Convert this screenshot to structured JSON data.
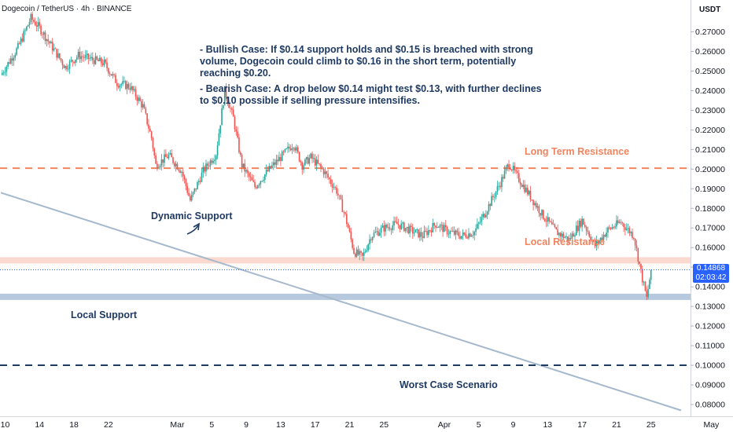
{
  "header": {
    "symbol": "Dogecoin / TetherUS · 4h · BINANCE",
    "currency": "USDT"
  },
  "price_badge": {
    "price": "0.14868",
    "countdown": "02:03:42"
  },
  "notes": {
    "bullish": "- Bullish Case: If $0.14 support holds and $0.15 is breached with strong volume, Dogecoin could climb to $0.16 in the short term, potentially reaching $0.20.",
    "bearish": "- Bearish Case: A drop below $0.14 might test $0.13, with further declines to $0.10 possible if selling pressure intensifies."
  },
  "labels": {
    "long_term_resistance": "Long Term Resistance",
    "local_resistance": "Local Resistance",
    "dynamic_support": "Dynamic Support",
    "local_support": "Local Support",
    "worst_case": "Worst Case Scenario"
  },
  "colors": {
    "up": "#26a69a",
    "down": "#ef5350",
    "resistance": "#f0845f",
    "support_zone": "#b7c9de",
    "support_line": "#1f3a63",
    "trendline": "#a6b9cc",
    "label_orange": "#f0845f",
    "label_navy": "#1f3a63",
    "price_badge": "#2962ff"
  },
  "chart_data": {
    "type": "candlestick",
    "pair": "DOGE/USDT",
    "timeframe": "4h",
    "ylim": [
      0.075,
      0.28
    ],
    "y_ticks": [
      "0.27000",
      "0.26000",
      "0.25000",
      "0.24000",
      "0.23000",
      "0.22000",
      "0.21000",
      "0.20000",
      "0.19000",
      "0.18000",
      "0.17000",
      "0.16000",
      "0.15000",
      "0.14000",
      "0.13000",
      "0.12000",
      "0.11000",
      "0.10000",
      "0.09000",
      "0.08000"
    ],
    "x_ticks": [
      "10",
      "14",
      "18",
      "22",
      "Mar",
      "5",
      "9",
      "13",
      "17",
      "21",
      "25",
      "Apr",
      "5",
      "9",
      "13",
      "17",
      "21",
      "25",
      "May"
    ],
    "x_tick_days": [
      -9.5,
      -5.5,
      -1.5,
      2.5,
      10.5,
      14.5,
      18.5,
      22.5,
      26.5,
      30.5,
      34.5,
      41.5,
      45.5,
      49.5,
      53.5,
      57.5,
      61.5,
      65.5,
      72.5
    ],
    "price_path": [
      [
        -10,
        0.248
      ],
      [
        -8,
        0.262
      ],
      [
        -6.5,
        0.277
      ],
      [
        -5.5,
        0.272
      ],
      [
        -4,
        0.262
      ],
      [
        -2.5,
        0.252
      ],
      [
        -1,
        0.258
      ],
      [
        2,
        0.254
      ],
      [
        3.5,
        0.244
      ],
      [
        5,
        0.242
      ],
      [
        6.5,
        0.232
      ],
      [
        7.5,
        0.216
      ],
      [
        8,
        0.202
      ],
      [
        9.5,
        0.207
      ],
      [
        11,
        0.199
      ],
      [
        12,
        0.184
      ],
      [
        13.5,
        0.199
      ],
      [
        15,
        0.208
      ],
      [
        16,
        0.24
      ],
      [
        17,
        0.226
      ],
      [
        18,
        0.202
      ],
      [
        19.5,
        0.191
      ],
      [
        21,
        0.199
      ],
      [
        22.5,
        0.206
      ],
      [
        24,
        0.213
      ],
      [
        25,
        0.202
      ],
      [
        26,
        0.206
      ],
      [
        27.5,
        0.199
      ],
      [
        29,
        0.189
      ],
      [
        30,
        0.176
      ],
      [
        31,
        0.158
      ],
      [
        32,
        0.155
      ],
      [
        33,
        0.166
      ],
      [
        34.5,
        0.17
      ],
      [
        36,
        0.172
      ],
      [
        37.5,
        0.169
      ],
      [
        39,
        0.166
      ],
      [
        40.5,
        0.172
      ],
      [
        42,
        0.168
      ],
      [
        43.5,
        0.166
      ],
      [
        45,
        0.168
      ],
      [
        46.5,
        0.18
      ],
      [
        48,
        0.193
      ],
      [
        49,
        0.203
      ],
      [
        50,
        0.196
      ],
      [
        51.5,
        0.186
      ],
      [
        53,
        0.176
      ],
      [
        54.5,
        0.168
      ],
      [
        56,
        0.164
      ],
      [
        57.5,
        0.174
      ],
      [
        59,
        0.161
      ],
      [
        60.5,
        0.169
      ],
      [
        62,
        0.173
      ],
      [
        63.5,
        0.166
      ],
      [
        64.5,
        0.144
      ],
      [
        65,
        0.134
      ],
      [
        65.5,
        0.14868
      ]
    ],
    "levels": {
      "long_term_resistance": 0.2005,
      "local_resistance": 0.1535,
      "local_support": 0.1349,
      "worst_case": 0.1
    },
    "dynamic_support_trendline": [
      [
        -10,
        0.188
      ],
      [
        69,
        0.077
      ]
    ],
    "last_price": 0.14868
  }
}
